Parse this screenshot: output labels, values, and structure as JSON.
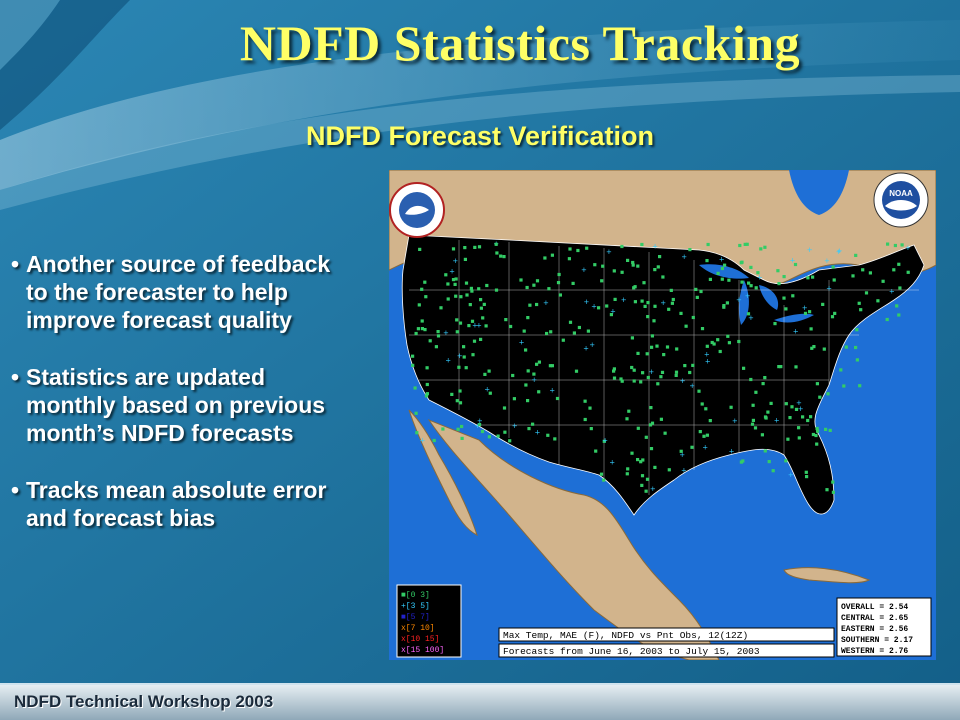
{
  "slide": {
    "title": "NDFD Statistics Tracking",
    "subtitle": "NDFD Forecast Verification",
    "bullets": [
      [
        "Another source of feedback",
        "to the forecaster to help",
        "improve forecast quality"
      ],
      [
        "Statistics are updated",
        "monthly based on previous",
        "month’s NDFD forecasts"
      ],
      [
        "Tracks mean absolute error",
        "and forecast bias"
      ]
    ],
    "footer": "NDFD Technical Workshop  2003"
  },
  "map": {
    "legend": [
      {
        "marker": "■",
        "range": "[0 3]",
        "color": "#33cc66"
      },
      {
        "marker": "+",
        "range": "[3 5]",
        "color": "#33ccff"
      },
      {
        "marker": "■",
        "range": "[5 7]",
        "color": "#2222cc"
      },
      {
        "marker": "x",
        "range": "[7 10]",
        "color": "#ff8800"
      },
      {
        "marker": "x",
        "range": "[10 15]",
        "color": "#ff2222"
      },
      {
        "marker": "x",
        "range": "[15 100]",
        "color": "#ff66ff"
      }
    ],
    "caption_line1": "Max Temp, MAE (F), NDFD vs Pnt Obs, 12(12Z)",
    "caption_line2": "Forecasts from June 16, 2003 to July 15, 2003",
    "stats": [
      "OVERALL = 2.54",
      "CENTRAL = 2.65",
      "EASTERN = 2.56",
      "SOUTHERN = 2.17",
      "WESTERN = 2.76"
    ],
    "logos": {
      "nws": "NATIONAL WEATHER SERVICE",
      "noaa": "NOAA"
    }
  },
  "colors": {
    "title": "#ffff66",
    "background": "#1a6f9a",
    "land": "#d2b48c",
    "water": "#1e6fd6",
    "conus": "#000000",
    "marker_good": "#33cc66",
    "marker_fair": "#33ccff"
  }
}
